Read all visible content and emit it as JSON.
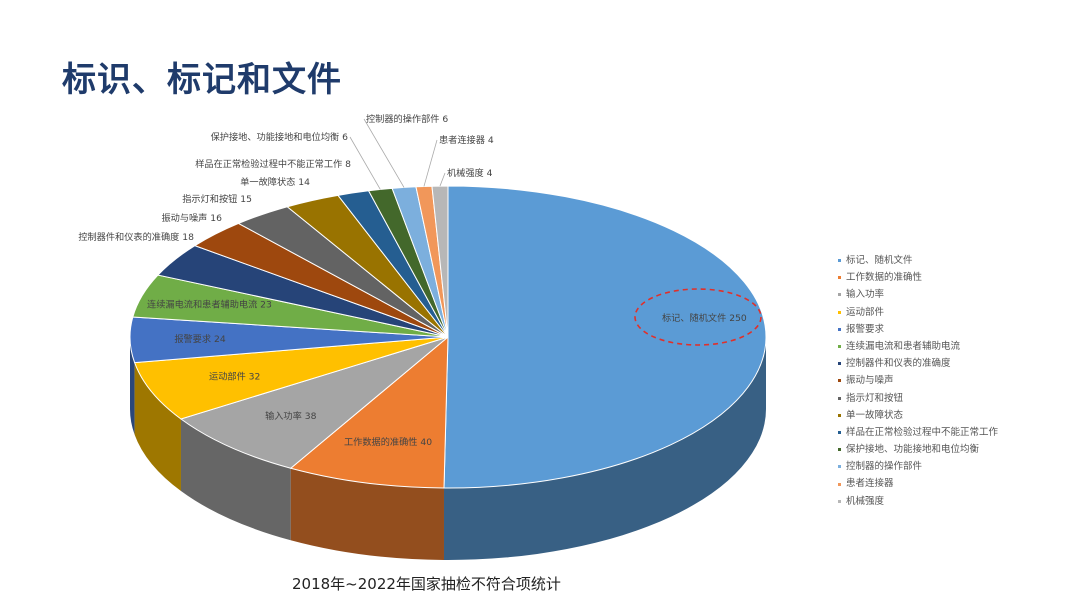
{
  "title": "标识、标记和文件",
  "subtitle": "2018年~2022年国家抽检不符合项统计",
  "chart_data": {
    "type": "pie",
    "title": "",
    "legend_position": "right",
    "slices": [
      {
        "label": "标记、随机文件",
        "value": 250,
        "color": "#5b9bd5",
        "data_label": "标记、随机文件 250"
      },
      {
        "label": "工作数据的准确性",
        "value": 40,
        "color": "#ed7d31",
        "data_label": "工作数据的准确性 40"
      },
      {
        "label": "输入功率",
        "value": 38,
        "color": "#a5a5a5",
        "data_label": "输入功率 38"
      },
      {
        "label": "运动部件",
        "value": 32,
        "color": "#ffc000",
        "data_label": "运动部件 32"
      },
      {
        "label": "报警要求",
        "value": 24,
        "color": "#4472c4",
        "data_label": "报警要求 24"
      },
      {
        "label": "连续漏电流和患者辅助电流",
        "value": 23,
        "color": "#70ad47",
        "data_label": "连续漏电流和患者辅助电流 23"
      },
      {
        "label": "控制器件和仪表的准确度",
        "value": 18,
        "color": "#264478",
        "data_label": "控制器件和仪表的准确度 18"
      },
      {
        "label": "振动与噪声",
        "value": 16,
        "color": "#9e480e",
        "data_label": "振动与噪声 16"
      },
      {
        "label": "指示灯和按钮",
        "value": 15,
        "color": "#636363",
        "data_label": "指示灯和按钮 15"
      },
      {
        "label": "单一故障状态",
        "value": 14,
        "color": "#997300",
        "data_label": "单一故障状态 14"
      },
      {
        "label": "样品在正常检验过程中不能正常工作",
        "value": 8,
        "color": "#255e91",
        "data_label": "样品在正常检验过程中不能正常工作 8"
      },
      {
        "label": "保护接地、功能接地和电位均衡",
        "value": 6,
        "color": "#43682b",
        "data_label": "保护接地、功能接地和电位均衡 6"
      },
      {
        "label": "控制器的操作部件",
        "value": 6,
        "color": "#7cafdd",
        "data_label": "控制器的操作部件 6"
      },
      {
        "label": "患者连接器",
        "value": 4,
        "color": "#f1975a",
        "data_label": "患者连接器 4"
      },
      {
        "label": "机械强度",
        "value": 4,
        "color": "#b7b7b7",
        "data_label": "机械强度 4"
      }
    ]
  }
}
